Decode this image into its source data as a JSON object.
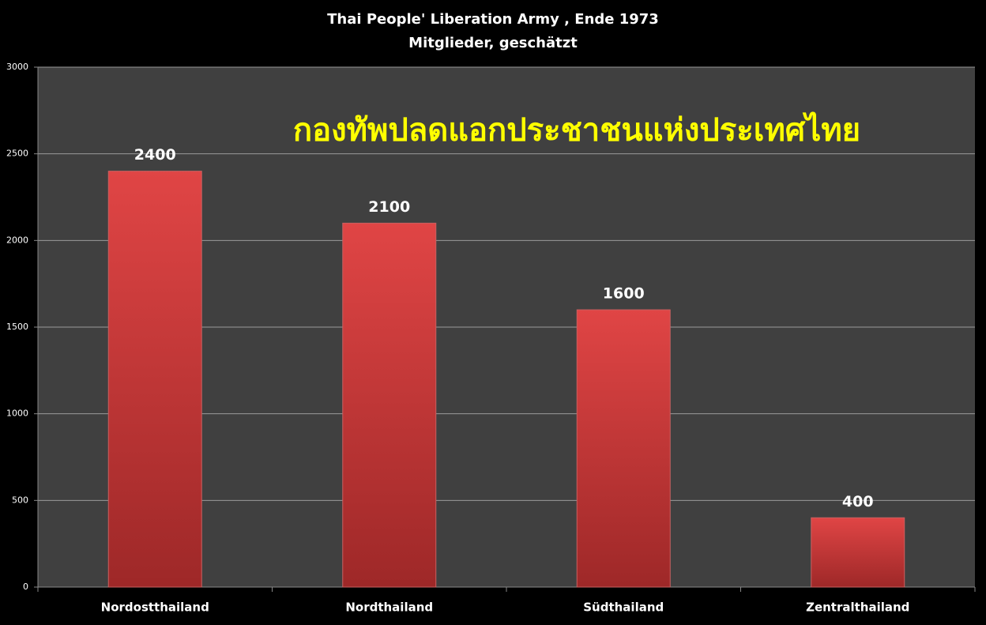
{
  "chart_data": {
    "type": "bar",
    "title": "Thai People' Liberation Army , Ende 1973",
    "subtitle": "Mitglieder, geschätzt",
    "annotation": "กองทัพปลดแอกประชาชนแห่งประเทศไทย",
    "categories": [
      "Nordostthailand",
      "Nordthailand",
      "Südthailand",
      "Zentralthailand"
    ],
    "values": [
      2400,
      2100,
      1600,
      400
    ],
    "color": "#d83c3c",
    "ylim": [
      0,
      3000
    ],
    "yticks": [
      0,
      500,
      1000,
      1500,
      2000,
      2500,
      3000
    ],
    "grid": true
  }
}
